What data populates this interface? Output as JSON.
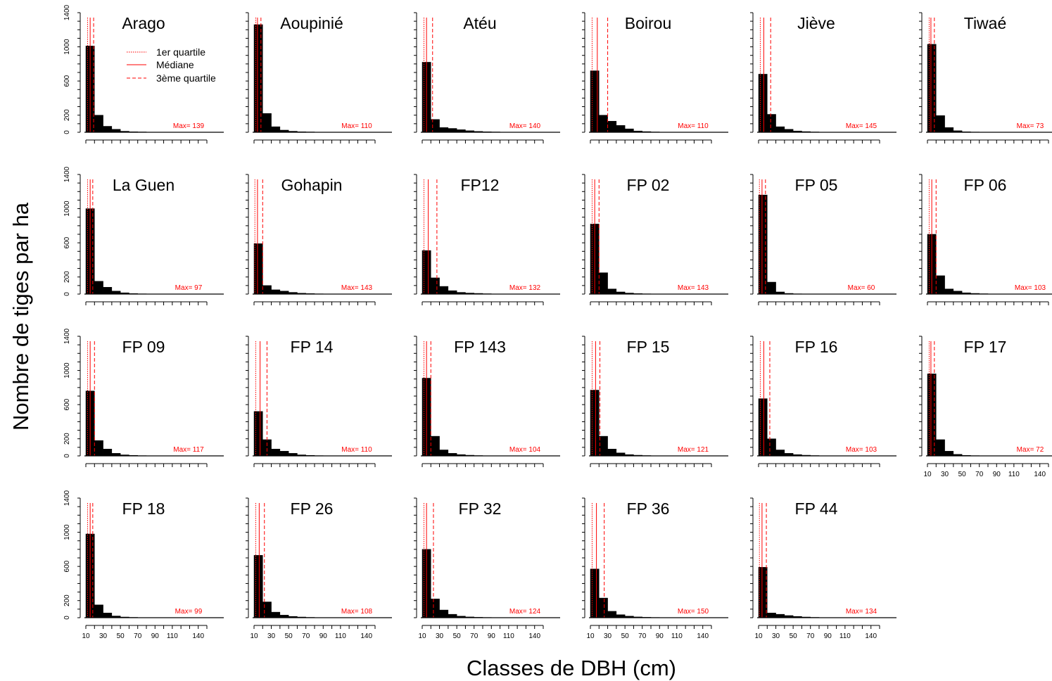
{
  "figure": {
    "xlabel": "Classes de DBH (cm)",
    "ylabel": "Nombre de tiges par ha",
    "legend": [
      "1er quartile",
      "Médiane",
      "3ème quartile"
    ],
    "y_ticks": [
      "0",
      "200",
      "600",
      "1000",
      "1400"
    ],
    "x_ticks": [
      "10",
      "30",
      "50",
      "70",
      "90",
      "110",
      "140"
    ]
  },
  "colors": {
    "bars": "#000000",
    "lines": "#ff0000",
    "axes": "#000000"
  },
  "chart_data": {
    "type": "bar",
    "bins_dbh_cm": [
      10,
      20,
      30,
      40,
      50,
      60,
      70,
      80,
      90,
      100,
      110,
      120,
      130,
      140,
      150
    ],
    "ylim": [
      0,
      1400
    ],
    "xlim": [
      10,
      150
    ],
    "panels": [
      {
        "title": "Arago",
        "max_label": "Max= 139",
        "values": [
          1010,
          200,
          70,
          35,
          12,
          6,
          4,
          2,
          1,
          1,
          1,
          1,
          1,
          0
        ],
        "q1": 12,
        "median": 15,
        "q3": 19
      },
      {
        "title": "Aoupinié",
        "max_label": "Max= 110",
        "values": [
          1260,
          220,
          65,
          25,
          12,
          6,
          4,
          2,
          2,
          1,
          1,
          0,
          0,
          0
        ],
        "q1": 12,
        "median": 14,
        "q3": 18
      },
      {
        "title": "Atéu",
        "max_label": "Max= 140",
        "values": [
          820,
          150,
          55,
          45,
          30,
          18,
          10,
          6,
          4,
          2,
          1,
          1,
          1,
          0
        ],
        "q1": 12,
        "median": 15,
        "q3": 22
      },
      {
        "title": "Boirou",
        "max_label": "Max= 110",
        "values": [
          720,
          200,
          130,
          80,
          40,
          15,
          8,
          4,
          2,
          1,
          1,
          0,
          0,
          0
        ],
        "q1": 12,
        "median": 18,
        "q3": 30
      },
      {
        "title": "Jiève",
        "max_label": "Max= 145",
        "values": [
          680,
          210,
          65,
          35,
          15,
          8,
          4,
          2,
          1,
          1,
          1,
          1,
          1,
          0
        ],
        "q1": 12,
        "median": 16,
        "q3": 24
      },
      {
        "title": "Tiwaé",
        "max_label": "Max= 73",
        "values": [
          1030,
          195,
          55,
          18,
          6,
          3,
          1,
          0,
          0,
          0,
          0,
          0,
          0,
          0
        ],
        "q1": 12,
        "median": 14,
        "q3": 18
      },
      {
        "title": "La Guen",
        "max_label": "Max= 97",
        "values": [
          1000,
          150,
          80,
          35,
          15,
          6,
          3,
          2,
          1,
          0,
          0,
          0,
          0,
          0
        ],
        "q1": 12,
        "median": 15,
        "q3": 18
      },
      {
        "title": "Gohapin",
        "max_label": "Max= 143",
        "values": [
          590,
          100,
          50,
          35,
          20,
          10,
          6,
          3,
          2,
          1,
          1,
          1,
          1,
          0
        ],
        "q1": 11,
        "median": 14,
        "q3": 20
      },
      {
        "title": "FP12",
        "max_label": "Max= 132",
        "values": [
          510,
          190,
          90,
          40,
          20,
          12,
          8,
          4,
          2,
          1,
          1,
          1,
          1,
          0
        ],
        "q1": 12,
        "median": 17,
        "q3": 27
      },
      {
        "title": "FP 02",
        "max_label": "Max= 143",
        "values": [
          820,
          250,
          60,
          25,
          12,
          6,
          3,
          2,
          1,
          1,
          1,
          1,
          1,
          0
        ],
        "q1": 12,
        "median": 15,
        "q3": 20
      },
      {
        "title": "FP 05",
        "max_label": "Max= 60",
        "values": [
          1160,
          140,
          25,
          8,
          3,
          1,
          0,
          0,
          0,
          0,
          0,
          0,
          0,
          0
        ],
        "q1": 11,
        "median": 14,
        "q3": 18
      },
      {
        "title": "FP 06",
        "max_label": "Max= 103",
        "values": [
          700,
          215,
          60,
          35,
          15,
          8,
          4,
          2,
          1,
          1,
          0,
          0,
          0,
          0
        ],
        "q1": 12,
        "median": 15,
        "q3": 20
      },
      {
        "title": "FP 09",
        "max_label": "Max= 117",
        "values": [
          760,
          180,
          80,
          30,
          12,
          6,
          3,
          2,
          1,
          1,
          1,
          0,
          0,
          0
        ],
        "q1": 12,
        "median": 15,
        "q3": 20
      },
      {
        "title": "FP 14",
        "max_label": "Max= 110",
        "values": [
          520,
          190,
          80,
          55,
          30,
          12,
          6,
          3,
          2,
          1,
          1,
          0,
          0,
          0
        ],
        "q1": 12,
        "median": 17,
        "q3": 25
      },
      {
        "title": "FP 143",
        "max_label": "Max= 104",
        "values": [
          910,
          230,
          70,
          30,
          15,
          8,
          4,
          2,
          1,
          1,
          0,
          0,
          0,
          0
        ],
        "q1": 12,
        "median": 15,
        "q3": 20
      },
      {
        "title": "FP 15",
        "max_label": "Max= 121",
        "values": [
          770,
          230,
          80,
          35,
          15,
          8,
          4,
          2,
          1,
          1,
          1,
          0,
          0,
          0
        ],
        "q1": 12,
        "median": 16,
        "q3": 21
      },
      {
        "title": "FP 16",
        "max_label": "Max= 103",
        "values": [
          670,
          200,
          70,
          30,
          15,
          8,
          4,
          2,
          1,
          1,
          0,
          0,
          0,
          0
        ],
        "q1": 12,
        "median": 16,
        "q3": 23
      },
      {
        "title": "FP 17",
        "max_label": "Max= 72",
        "values": [
          960,
          190,
          55,
          18,
          6,
          3,
          1,
          0,
          0,
          0,
          0,
          0,
          0,
          0
        ],
        "q1": 12,
        "median": 14,
        "q3": 18
      },
      {
        "title": "FP 18",
        "max_label": "Max= 99",
        "values": [
          980,
          150,
          55,
          20,
          8,
          4,
          2,
          1,
          0,
          0,
          0,
          0,
          0,
          0
        ],
        "q1": 12,
        "median": 15,
        "q3": 18
      },
      {
        "title": "FP 26",
        "max_label": "Max= 108",
        "values": [
          730,
          185,
          65,
          30,
          15,
          8,
          4,
          2,
          1,
          1,
          0,
          0,
          0,
          0
        ],
        "q1": 12,
        "median": 16,
        "q3": 22
      },
      {
        "title": "FP 32",
        "max_label": "Max= 124",
        "values": [
          800,
          220,
          90,
          40,
          18,
          9,
          5,
          3,
          2,
          1,
          1,
          0,
          0,
          0
        ],
        "q1": 12,
        "median": 15,
        "q3": 23
      },
      {
        "title": "FP 36",
        "max_label": "Max= 150",
        "values": [
          570,
          230,
          75,
          35,
          18,
          9,
          5,
          3,
          2,
          1,
          1,
          1,
          1,
          1
        ],
        "q1": 12,
        "median": 17,
        "q3": 26
      },
      {
        "title": "FP 44",
        "max_label": "Max= 134",
        "values": [
          590,
          55,
          40,
          25,
          15,
          8,
          4,
          2,
          1,
          1,
          1,
          1,
          0,
          0
        ],
        "q1": 11,
        "median": 14,
        "q3": 19
      }
    ]
  }
}
